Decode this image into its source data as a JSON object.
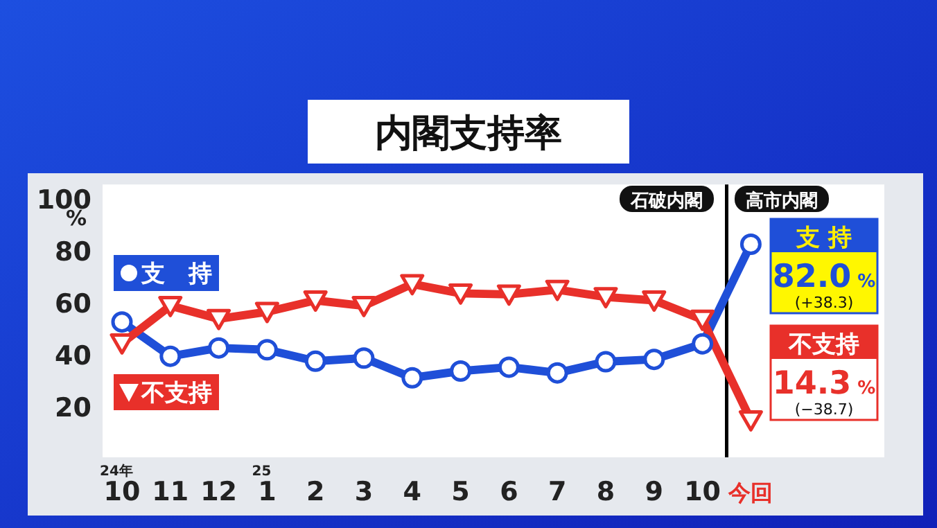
{
  "chart_data": {
    "type": "line",
    "title": "内閣支持率",
    "ylabel": "%",
    "categories": [
      "24年\n10",
      "11",
      "12",
      "25\n1",
      "2",
      "3",
      "4",
      "5",
      "6",
      "7",
      "8",
      "9",
      "10",
      "今回"
    ],
    "ylim": [
      0,
      105
    ],
    "yticks": [
      20,
      40,
      60,
      80,
      100
    ],
    "grid": false,
    "legend": "left",
    "series": [
      {
        "name": "支　持",
        "color": "#1f4fd8",
        "marker": "circle",
        "values": [
          52.1,
          38.9,
          42.1,
          41.4,
          37.0,
          38.2,
          30.6,
          33.2,
          34.7,
          32.5,
          36.8,
          37.7,
          43.7,
          82.0
        ],
        "value_labels": [
          null,
          null,
          null,
          null,
          null,
          null,
          null,
          null,
          null,
          null,
          null,
          null,
          null,
          "82.0 %"
        ]
      },
      {
        "name": "不支持",
        "color": "#e8302a",
        "marker": "triangle",
        "values": [
          43.9,
          58.3,
          53.3,
          56.0,
          60.4,
          58.3,
          66.7,
          63.1,
          62.7,
          64.5,
          61.7,
          60.4,
          53.0,
          14.3
        ],
        "value_labels": [
          null,
          null,
          null,
          null,
          null,
          null,
          null,
          null,
          null,
          null,
          null,
          null,
          null,
          "14.3 %"
        ]
      }
    ],
    "annotations": [
      "石破内閣",
      "高市内閣",
      "支 持",
      "(+38.3)",
      "不支持",
      "(−38.7)"
    ]
  }
}
